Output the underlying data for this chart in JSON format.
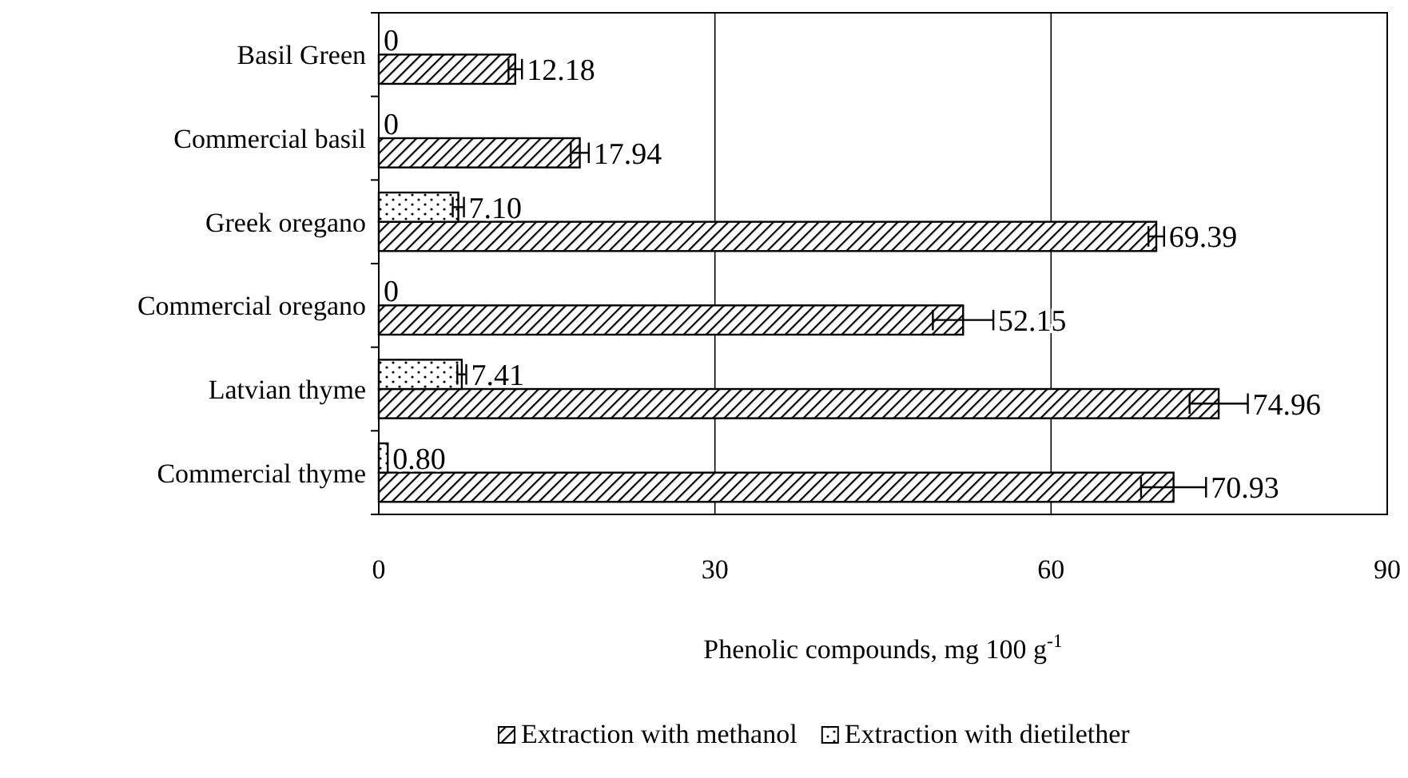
{
  "chart_data": {
    "type": "bar",
    "orientation": "horizontal",
    "categories": [
      "Basil Green",
      "Commercial basil",
      "Greek oregano",
      "Commercial oregano",
      "Latvian thyme",
      "Commercial thyme"
    ],
    "xlabel": "Phenolic compounds, mg 100 g$^{-1}$",
    "xlim": [
      0,
      90
    ],
    "xticks": [
      0,
      30,
      60,
      90
    ],
    "grid": "x",
    "legend": "bottom",
    "series": [
      {
        "name": "Extraction with methanol",
        "color": "#000000",
        "values": [
          12.18,
          17.94,
          69.39,
          52.15,
          74.96,
          70.93
        ],
        "errors": [
          0.6,
          0.8,
          0.7,
          2.7,
          2.6,
          2.9
        ],
        "value_labels": [
          "12.18",
          "17.94",
          "69.39",
          "52.15",
          "74.96",
          "70.93"
        ]
      },
      {
        "name": "Extraction with dietilether",
        "color": "#000000",
        "values": [
          0,
          0,
          7.1,
          0,
          7.41,
          0.8
        ],
        "errors": [
          null,
          null,
          0.5,
          null,
          0.4,
          null
        ],
        "value_labels": [
          "0",
          "0",
          "7.10",
          "0",
          "7.41",
          "0.80"
        ]
      }
    ]
  }
}
